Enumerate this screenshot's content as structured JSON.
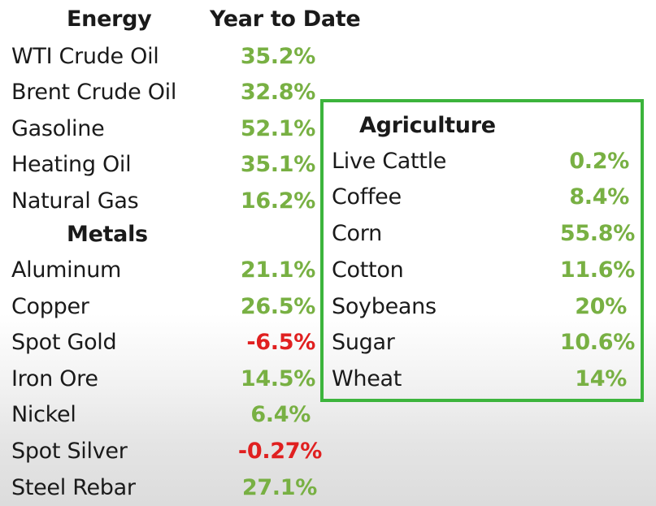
{
  "headers": {
    "energy": "Energy",
    "ytd": "Year to Date",
    "metals": "Metals",
    "agriculture": "Agriculture"
  },
  "energy": [
    {
      "name": "WTI Crude Oil",
      "value": "35.2%"
    },
    {
      "name": "Brent Crude Oil",
      "value": "32.8%"
    },
    {
      "name": "Gasoline",
      "value": "52.1%"
    },
    {
      "name": "Heating Oil",
      "value": "35.1%"
    },
    {
      "name": "Natural Gas",
      "value": "16.2%"
    }
  ],
  "metals": [
    {
      "name": "Aluminum",
      "value": "21.1%"
    },
    {
      "name": "Copper",
      "value": "26.5%"
    },
    {
      "name": "Spot Gold",
      "value": "-6.5%"
    },
    {
      "name": "Iron Ore",
      "value": "14.5%"
    },
    {
      "name": "Nickel",
      "value": "6.4%"
    },
    {
      "name": "Spot Silver",
      "value": "-0.27%"
    },
    {
      "name": "Steel Rebar",
      "value": "27.1%"
    }
  ],
  "agriculture": [
    {
      "name": "Live Cattle",
      "value": "0.2%"
    },
    {
      "name": "Coffee",
      "value": "8.4%"
    },
    {
      "name": "Corn",
      "value": "55.8%"
    },
    {
      "name": "Cotton",
      "value": "11.6%"
    },
    {
      "name": "Soybeans",
      "value": "20%"
    },
    {
      "name": "Sugar",
      "value": "10.6%"
    },
    {
      "name": "Wheat",
      "value": "14%"
    }
  ],
  "colors": {
    "positive": "#78b043",
    "negative": "#e02020",
    "box_border": "#3cb43c"
  }
}
